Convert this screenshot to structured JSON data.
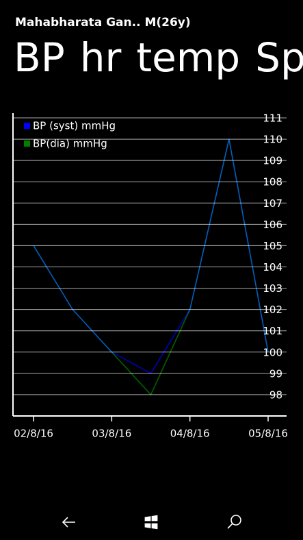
{
  "header": {
    "title": "Mahabharata Gan..  M(26y)",
    "pivots": [
      "BP",
      "hr",
      "temp",
      "Spo"
    ]
  },
  "chart_data": {
    "type": "line",
    "categories": [
      "02/8/16",
      null,
      "03/8/16",
      null,
      "04/8/16",
      null,
      "05/8/16"
    ],
    "series": [
      {
        "name": "BP (syst) mmHg",
        "color": "#0000ff",
        "values": [
          105,
          102,
          100,
          99,
          102,
          110,
          100
        ]
      },
      {
        "name": "BP(dia) mmHg",
        "color": "#008000",
        "values": [
          105,
          102,
          100,
          98,
          102,
          110,
          100
        ]
      }
    ],
    "ylim": [
      97,
      111
    ],
    "yticks": [
      98,
      99,
      100,
      101,
      102,
      103,
      104,
      105,
      106,
      107,
      108,
      109,
      110,
      111
    ],
    "grid": true,
    "legend": "top-left"
  }
}
